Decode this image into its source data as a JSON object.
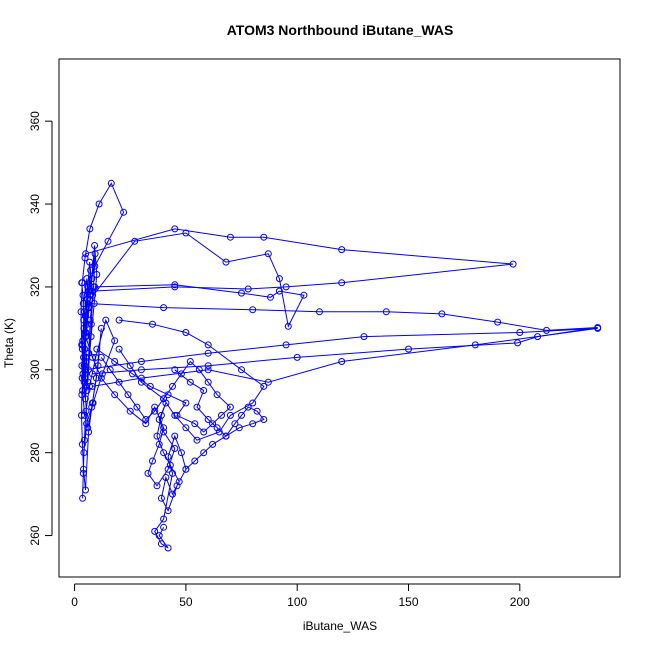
{
  "chart_data": {
    "type": "line",
    "title": "ATOM3 Northbound iButane_WAS",
    "xlabel": "iButane_WAS",
    "ylabel": "Theta (K)",
    "xlim": [
      -7,
      245
    ],
    "ylim": [
      250,
      375
    ],
    "x_ticks": [
      0,
      50,
      100,
      150,
      200
    ],
    "y_ticks": [
      260,
      280,
      300,
      320,
      340,
      360
    ],
    "marker": "open-circle",
    "grid": false,
    "legend": "none",
    "colors": {
      "series": "#0000ff",
      "axis": "#000000"
    },
    "series": [
      {
        "x": [
          3.2,
          3.8,
          4.1,
          3.5,
          4.6,
          5.0,
          4.2,
          3.9,
          5.5,
          6.1,
          4.8,
          5.2,
          4.4,
          3.6,
          4.9,
          6.5,
          7.2,
          5.8,
          4.7,
          5.3,
          6.0,
          7.5,
          8.1,
          6.8,
          5.9,
          4.5,
          3.7,
          4.3,
          5.6,
          6.4,
          7.0,
          8.5,
          9.2,
          7.8,
          6.6,
          5.1,
          4.0,
          3.4,
          4.8,
          6.2,
          7.4,
          8.8,
          10.0,
          9.0,
          7.1,
          5.7,
          4.6,
          3.8,
          3.3,
          3.1,
          3.5,
          4.0,
          4.9,
          6.3,
          8.0,
          10.5,
          12.0,
          9.8,
          7.7,
          5.4,
          4.2,
          3.6,
          3.9,
          4.4,
          5.1,
          6.7,
          9.5,
          14.0,
          18.0,
          12.5,
          8.3,
          5.9,
          4.3,
          3.2,
          2.9,
          3.4,
          4.7,
          6.9,
          11.0,
          16.5,
          22.0,
          15.0,
          9.1,
          6.2,
          4.8,
          3.7,
          3.3,
          3.6,
          4.5
        ],
        "y": [
          321,
          318,
          312,
          305,
          300,
          296,
          310,
          316,
          322,
          315,
          308,
          302,
          298,
          306,
          313,
          319,
          324,
          317,
          309,
          303,
          297,
          311,
          318,
          326,
          320,
          314,
          307,
          301,
          295,
          304,
          312,
          320,
          328,
          322,
          315,
          309,
          303,
          298,
          293,
          300,
          308,
          316,
          323,
          330,
          318,
          311,
          305,
          299,
          294,
          289,
          282,
          276,
          271,
          285,
          292,
          301,
          310,
          298,
          291,
          287,
          280,
          269,
          275,
          283,
          290,
          296,
          303,
          312,
          307,
          299,
          292,
          286,
          297,
          306,
          314,
          321,
          327,
          334,
          340,
          345,
          338,
          331,
          325,
          319,
          313,
          307,
          301,
          295,
          289
        ]
      },
      {
        "x": [
          5.0,
          8.0,
          12.0,
          18.0,
          25.0,
          32.0,
          36.0,
          40.0,
          38.0,
          35.0,
          33.0,
          37.0,
          42.0,
          45.0,
          40.0,
          38.0,
          41.0,
          39.0,
          37.0,
          40.0,
          43.0,
          47.0,
          44.0,
          41.0,
          39.0,
          42.0,
          46.0,
          50.0,
          48.0,
          45.0,
          42.0,
          44.0,
          40.0,
          36.0,
          39.0,
          42.0,
          38.0,
          40.0
        ],
        "y": [
          308,
          303,
          298,
          294,
          290,
          287,
          291,
          286,
          282,
          278,
          275,
          272,
          276,
          281,
          285,
          288,
          292,
          289,
          284,
          280,
          277,
          273,
          270,
          274,
          269,
          266,
          272,
          276,
          280,
          284,
          279,
          275,
          264,
          261,
          258,
          257,
          260,
          262
        ]
      },
      {
        "x": [
          10.0,
          18.0,
          26.0,
          34.0,
          42.0,
          50.0,
          46.0,
          54.0,
          58.0,
          62.0,
          66.0,
          70.0,
          64.0,
          60.0,
          56.0,
          52.0,
          48.0,
          44.0,
          40.0,
          36.0,
          32.0,
          28.0,
          24.0,
          20.0,
          16.0,
          12.0
        ],
        "y": [
          305,
          302,
          299,
          296,
          294,
          292,
          289,
          287,
          285,
          287,
          289,
          291,
          294,
          297,
          300,
          302,
          299,
          296,
          293,
          290,
          288,
          291,
          294,
          297,
          300,
          303
        ]
      },
      {
        "x": [
          5.0,
          45.0,
          70.0,
          85.0,
          120.0,
          197.0,
          120.0,
          95.0,
          78.0,
          45.0,
          8.0
        ],
        "y": [
          328,
          334,
          332,
          332,
          329,
          325.5,
          321,
          320,
          319.5,
          320,
          319
        ]
      },
      {
        "x": [
          6.0,
          40.0,
          80.0,
          110.0,
          140.0,
          165.0,
          190.0,
          212.0,
          235.0,
          208.0,
          199.0,
          150.0,
          100.0,
          60.0,
          30.0,
          8.0
        ],
        "y": [
          316,
          315,
          314.5,
          314,
          314,
          313.5,
          311.5,
          309.5,
          310.2,
          308,
          306.5,
          305,
          303,
          301,
          300,
          299
        ]
      },
      {
        "x": [
          5.0,
          30.0,
          60.0,
          95.0,
          130.0,
          200.0,
          235.0,
          180.0,
          120.0,
          87.0,
          60.0,
          30.0,
          8.0
        ],
        "y": [
          300,
          302,
          304,
          306,
          308,
          309,
          310,
          306,
          302,
          297,
          300,
          298,
          296
        ]
      },
      {
        "x": [
          7.0,
          27.0,
          50.0,
          68.0,
          87.0,
          92.0,
          96.0,
          103.0,
          92.0,
          88.0,
          75.0,
          45.0,
          9.0
        ],
        "y": [
          317,
          331,
          333,
          326,
          328,
          322,
          310.5,
          318,
          319,
          317.5,
          318.5,
          320.5,
          320
        ]
      },
      {
        "x": [
          20.0,
          35.0,
          50.0,
          60.0,
          75.0,
          85.0,
          80.0,
          70.0,
          65.0,
          55.0,
          50.0,
          45.0,
          40.0,
          30.0,
          25.0,
          20.0
        ],
        "y": [
          312,
          311,
          309,
          306,
          300,
          296,
          292,
          289,
          285,
          283,
          286,
          289,
          293,
          297,
          301,
          305
        ]
      },
      {
        "x": [
          45.0,
          52.0,
          58.0,
          55.0,
          60.0,
          64.0,
          68.0,
          72.0,
          75.0,
          78.0,
          82.0,
          85.0,
          80.0,
          74.0,
          68.0,
          62.0,
          58.0,
          54.0,
          50.0
        ],
        "y": [
          300,
          297,
          295,
          291,
          288,
          286,
          284,
          287,
          289,
          291,
          290,
          288,
          287,
          286,
          284,
          282,
          280,
          278,
          276
        ]
      }
    ]
  }
}
